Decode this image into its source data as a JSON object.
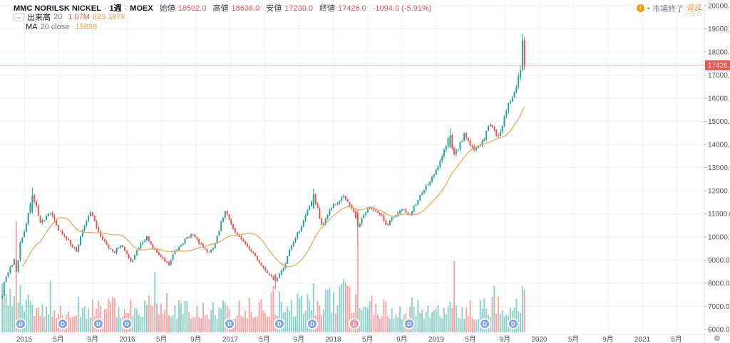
{
  "header": {
    "symbol": "MMC NORILSK NICKEL",
    "sep": "·",
    "interval": "1週",
    "exchange": "MOEX",
    "ohlc": {
      "open_label": "始値",
      "open": "18502.0",
      "high_label": "高値",
      "high": "18638.0",
      "low_label": "安値",
      "low": "17230.0",
      "close_label": "終値",
      "close": "17426.0",
      "change": "-1094.0 (-5.91%)"
    },
    "status_dot": "•",
    "market_status": "市場終了",
    "delay_label": "遅延"
  },
  "legend": {
    "volume": {
      "label": "出来高",
      "length": "20",
      "value": "1.07M",
      "ma_value": "823.197K"
    },
    "ma": {
      "label": "MA",
      "params": "20 close",
      "value": "15859"
    }
  },
  "icons": {
    "chevron_down": "⌄",
    "gear": "⚙",
    "alert": "!"
  },
  "chart_data": {
    "type": "candlestick",
    "title": "MMC NORILSK NICKEL · 1週 · MOEX",
    "legend_position": "top-left",
    "grid": true,
    "last_price": 17426.0,
    "last_price_label": "17426.0",
    "last_candle": {
      "open": 18502.0,
      "high": 18638.0,
      "low": 17230.0,
      "close": 17426.0,
      "change": -1094.0,
      "change_pct": -5.91
    },
    "ma20_close": 15859,
    "volume_current": "1.07M",
    "volume_ma20": "823.197K",
    "start_t": 2014.786,
    "week_dt": 0.0195,
    "weeks": 261,
    "y_axis": {
      "min": 6000,
      "max": 20000,
      "step": 1000,
      "ticks": [
        {
          "p": 20000,
          "label": "20000.0"
        },
        {
          "p": 19000,
          "label": "19000.0"
        },
        {
          "p": 18000,
          "label": "18000.0"
        },
        {
          "p": 17000,
          "label": "17000.0"
        },
        {
          "p": 16000,
          "label": "16000.0"
        },
        {
          "p": 15000,
          "label": "15000.0"
        },
        {
          "p": 14000,
          "label": "14000.0"
        },
        {
          "p": 13000,
          "label": "13000.0"
        },
        {
          "p": 12000,
          "label": "12000.0"
        },
        {
          "p": 11000,
          "label": "11000.0"
        },
        {
          "p": 10000,
          "label": "10000.0"
        },
        {
          "p": 9000,
          "label": "9000.0"
        },
        {
          "p": 8000,
          "label": "8000.0"
        },
        {
          "p": 7000,
          "label": "7000.0"
        },
        {
          "p": 6000,
          "label": "6000.0"
        }
      ]
    },
    "x_axis": {
      "ticks": [
        {
          "t": 2015.0,
          "label": "2015"
        },
        {
          "t": 2015.333,
          "label": "5月"
        },
        {
          "t": 2015.667,
          "label": "9月"
        },
        {
          "t": 2016.0,
          "label": "2016"
        },
        {
          "t": 2016.333,
          "label": "5月"
        },
        {
          "t": 2016.667,
          "label": "9月"
        },
        {
          "t": 2017.0,
          "label": "2017"
        },
        {
          "t": 2017.333,
          "label": "5月"
        },
        {
          "t": 2017.667,
          "label": "9月"
        },
        {
          "t": 2018.0,
          "label": "2018"
        },
        {
          "t": 2018.333,
          "label": "5月"
        },
        {
          "t": 2018.667,
          "label": "9月"
        },
        {
          "t": 2019.0,
          "label": "2019"
        },
        {
          "t": 2019.333,
          "label": "5月"
        },
        {
          "t": 2019.667,
          "label": "9月"
        },
        {
          "t": 2020.0,
          "label": "2020"
        },
        {
          "t": 2020.333,
          "label": "5月"
        },
        {
          "t": 2020.667,
          "label": "9月"
        },
        {
          "t": 2021.0,
          "label": "2021"
        },
        {
          "t": 2021.333,
          "label": "5月"
        }
      ]
    },
    "price_anchors": [
      [
        2014.786,
        7500
      ],
      [
        2014.8,
        8000
      ],
      [
        2014.855,
        8600
      ],
      [
        2014.903,
        9000
      ],
      [
        2014.931,
        8500,
        9000,
        10690,
        8240
      ],
      [
        2014.958,
        9700
      ],
      [
        2015.0,
        10200
      ],
      [
        2015.028,
        10800
      ],
      [
        2015.076,
        11800,
        11100,
        12150,
        11000
      ],
      [
        2015.11,
        11400
      ],
      [
        2015.16,
        10600
      ],
      [
        2015.215,
        10900
      ],
      [
        2015.263,
        11100
      ],
      [
        2015.332,
        10300
      ],
      [
        2015.4,
        10000
      ],
      [
        2015.47,
        9600
      ],
      [
        2015.512,
        9350
      ],
      [
        2015.56,
        10200
      ],
      [
        2015.61,
        10800
      ],
      [
        2015.65,
        11150
      ],
      [
        2015.706,
        10300
      ],
      [
        2015.76,
        9900
      ],
      [
        2015.817,
        9500
      ],
      [
        2015.872,
        9300
      ],
      [
        2015.927,
        9650
      ],
      [
        2015.983,
        9400
      ],
      [
        2016.038,
        8900
      ],
      [
        2016.093,
        9400
      ],
      [
        2016.149,
        9800
      ],
      [
        2016.197,
        10000
      ],
      [
        2016.246,
        9500
      ],
      [
        2016.301,
        9300
      ],
      [
        2016.356,
        9000
      ],
      [
        2016.405,
        8800
      ],
      [
        2016.46,
        9400
      ],
      [
        2016.516,
        9600
      ],
      [
        2016.578,
        10000
      ],
      [
        2016.633,
        10100
      ],
      [
        2016.689,
        9800
      ],
      [
        2016.744,
        9500
      ],
      [
        2016.799,
        9300
      ],
      [
        2016.854,
        9700
      ],
      [
        2016.91,
        10600
      ],
      [
        2016.958,
        11150
      ],
      [
        2017.007,
        10500
      ],
      [
        2017.062,
        10100
      ],
      [
        2017.117,
        9900
      ],
      [
        2017.173,
        9500
      ],
      [
        2017.228,
        9300
      ],
      [
        2017.284,
        8900
      ],
      [
        2017.339,
        8600
      ],
      [
        2017.394,
        8300
      ],
      [
        2017.436,
        8100,
        8350,
        8400,
        7750
      ],
      [
        2017.484,
        8500
      ],
      [
        2017.533,
        8800
      ],
      [
        2017.588,
        9600
      ],
      [
        2017.644,
        10100
      ],
      [
        2017.699,
        10500
      ],
      [
        2017.754,
        11200
      ],
      [
        2017.81,
        11850,
        11250,
        12090,
        11200
      ],
      [
        2017.858,
        11000
      ],
      [
        2017.893,
        10450
      ],
      [
        2017.948,
        11000
      ],
      [
        2018.003,
        11400
      ],
      [
        2018.058,
        11600
      ],
      [
        2018.107,
        11800
      ],
      [
        2018.155,
        11400
      ],
      [
        2018.204,
        11100
      ],
      [
        2018.245,
        10450,
        11050,
        11150,
        9690
      ],
      [
        2018.294,
        11000
      ],
      [
        2018.349,
        11300
      ],
      [
        2018.404,
        11200
      ],
      [
        2018.46,
        11000
      ],
      [
        2018.515,
        10500
      ],
      [
        2018.571,
        10800
      ],
      [
        2018.626,
        11000
      ],
      [
        2018.682,
        11200
      ],
      [
        2018.737,
        10900
      ],
      [
        2018.792,
        11400
      ],
      [
        2018.848,
        11800
      ],
      [
        2018.903,
        12200
      ],
      [
        2018.958,
        12600
      ],
      [
        2019.014,
        13000
      ],
      [
        2019.069,
        13600
      ],
      [
        2019.125,
        14400,
        13900,
        14700,
        13850
      ],
      [
        2019.173,
        13500
      ],
      [
        2019.228,
        14000
      ],
      [
        2019.277,
        14500
      ],
      [
        2019.325,
        13900
      ],
      [
        2019.373,
        13750
      ],
      [
        2019.422,
        13950
      ],
      [
        2019.47,
        14300
      ],
      [
        2019.519,
        15000
      ],
      [
        2019.567,
        14500
      ],
      [
        2019.609,
        14250
      ],
      [
        2019.657,
        15100
      ],
      [
        2019.699,
        15700
      ],
      [
        2019.74,
        16100
      ],
      [
        2019.768,
        16300
      ],
      [
        2019.79,
        16800
      ],
      [
        2019.817,
        17200,
        16900,
        17400,
        16750
      ],
      [
        2019.829,
        18500,
        17230,
        18780,
        17150
      ],
      [
        2019.849,
        17426,
        18502,
        18638,
        17230
      ]
    ],
    "volume_envelope": [
      [
        2014.786,
        0.55
      ],
      [
        2014.93,
        0.5
      ],
      [
        2015.1,
        0.4
      ],
      [
        2015.3,
        0.35
      ],
      [
        2015.6,
        0.33
      ],
      [
        2015.9,
        0.35
      ],
      [
        2016.1,
        0.36
      ],
      [
        2016.27,
        0.45
      ],
      [
        2016.5,
        0.33
      ],
      [
        2016.8,
        0.32
      ],
      [
        2017.0,
        0.33
      ],
      [
        2017.25,
        0.36
      ],
      [
        2017.45,
        0.4
      ],
      [
        2017.7,
        0.38
      ],
      [
        2017.85,
        0.42
      ],
      [
        2018.0,
        0.45
      ],
      [
        2018.15,
        0.5
      ],
      [
        2018.3,
        0.38
      ],
      [
        2018.5,
        0.32
      ],
      [
        2018.75,
        0.33
      ],
      [
        2019.0,
        0.35
      ],
      [
        2019.2,
        0.33
      ],
      [
        2019.4,
        0.3
      ],
      [
        2019.6,
        0.38
      ],
      [
        2019.8,
        0.45
      ],
      [
        2019.856,
        0.5
      ]
    ],
    "volume_spikes": [
      [
        2014.931,
        0.62,
        -1
      ],
      [
        2015.263,
        0.58,
        1
      ],
      [
        2016.27,
        0.68,
        1
      ],
      [
        2017.42,
        0.52,
        -1
      ],
      [
        2017.81,
        0.55,
        1
      ],
      [
        2018.1,
        0.6,
        1
      ],
      [
        2018.125,
        0.56,
        -1
      ],
      [
        2018.245,
        1.0,
        -1
      ],
      [
        2019.173,
        0.8,
        -1
      ],
      [
        2019.567,
        0.52,
        1
      ],
      [
        2019.829,
        0.52,
        1
      ],
      [
        2019.849,
        0.48,
        -1
      ]
    ],
    "events": {
      "dividend_letter": "D",
      "earnings_letter": "E",
      "dividend_t": [
        2014.965,
        2015.374,
        2015.72,
        2015.997,
        2016.993,
        2017.477,
        2017.796,
        2018.737,
        2019.471,
        2019.747
      ],
      "earnings_t": [
        2018.204
      ]
    },
    "colors": {
      "up": "#26a69a",
      "down": "#ef5350",
      "vol_up": "rgba(38,166,154,0.5)",
      "vol_down": "rgba(239,83,80,0.5)",
      "ma": "#f5a04e",
      "grid": "#f0f3fa",
      "axis_line": "#e0e3eb",
      "axis_text": "#50535e",
      "price_line": "#ef5350",
      "badge_div": "#7da6ea",
      "badge_earn": "#ef949c",
      "price_label_bg": "#ef5350",
      "price_label_text": "#ffffff"
    }
  }
}
